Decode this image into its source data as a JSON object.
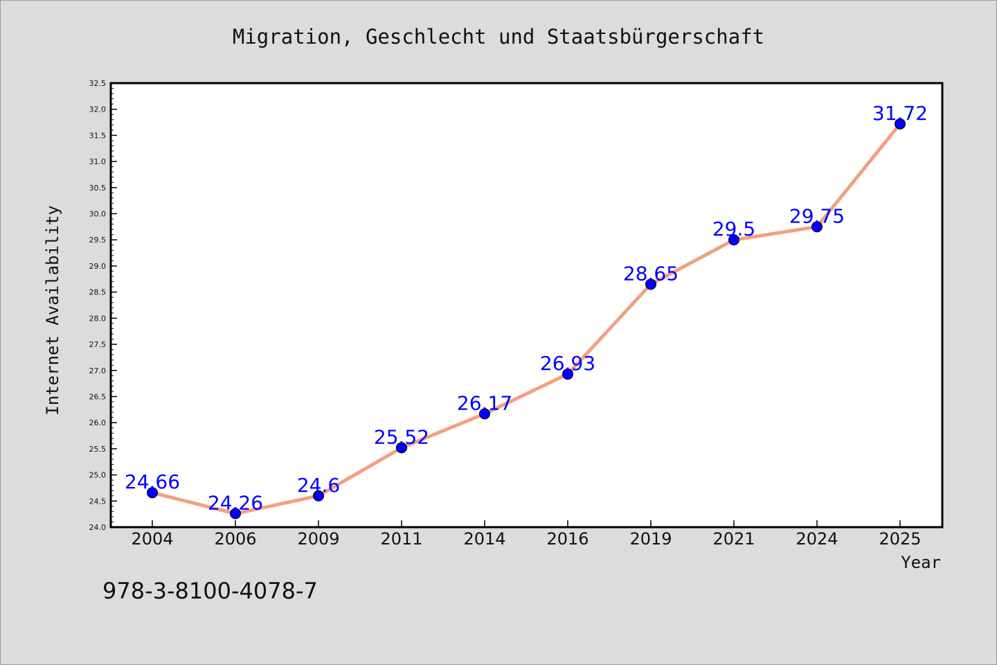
{
  "chart_data": {
    "type": "line",
    "title": "Migration, Geschlecht und Staatsbürgerschaft",
    "xlabel": "Year",
    "ylabel": "Internet Availability",
    "categories": [
      "2004",
      "2006",
      "2009",
      "2011",
      "2014",
      "2016",
      "2019",
      "2021",
      "2024",
      "2025"
    ],
    "series": [
      {
        "values": [
          24.66,
          24.26,
          24.6,
          25.52,
          26.17,
          26.93,
          28.65,
          29.5,
          29.75,
          31.72
        ],
        "labels": [
          "24.66",
          "24.26",
          "24.6",
          "25.52",
          "26.17",
          "26.93",
          "28.65",
          "29.5",
          "29.75",
          "31.72"
        ],
        "line_color": "#f4a080",
        "marker_color": "#0000ff"
      }
    ],
    "ylim": [
      24.0,
      32.5
    ],
    "yticks": [
      "24.0",
      "24.5",
      "25.0",
      "25.5",
      "26.0",
      "26.5",
      "27.0",
      "27.5",
      "28.0",
      "28.5",
      "29.0",
      "29.5",
      "30.0",
      "30.5",
      "31.0",
      "31.5",
      "32.0",
      "32.5"
    ],
    "grid": false,
    "legend": "none",
    "footer_text": "978-3-8100-4078-7"
  }
}
